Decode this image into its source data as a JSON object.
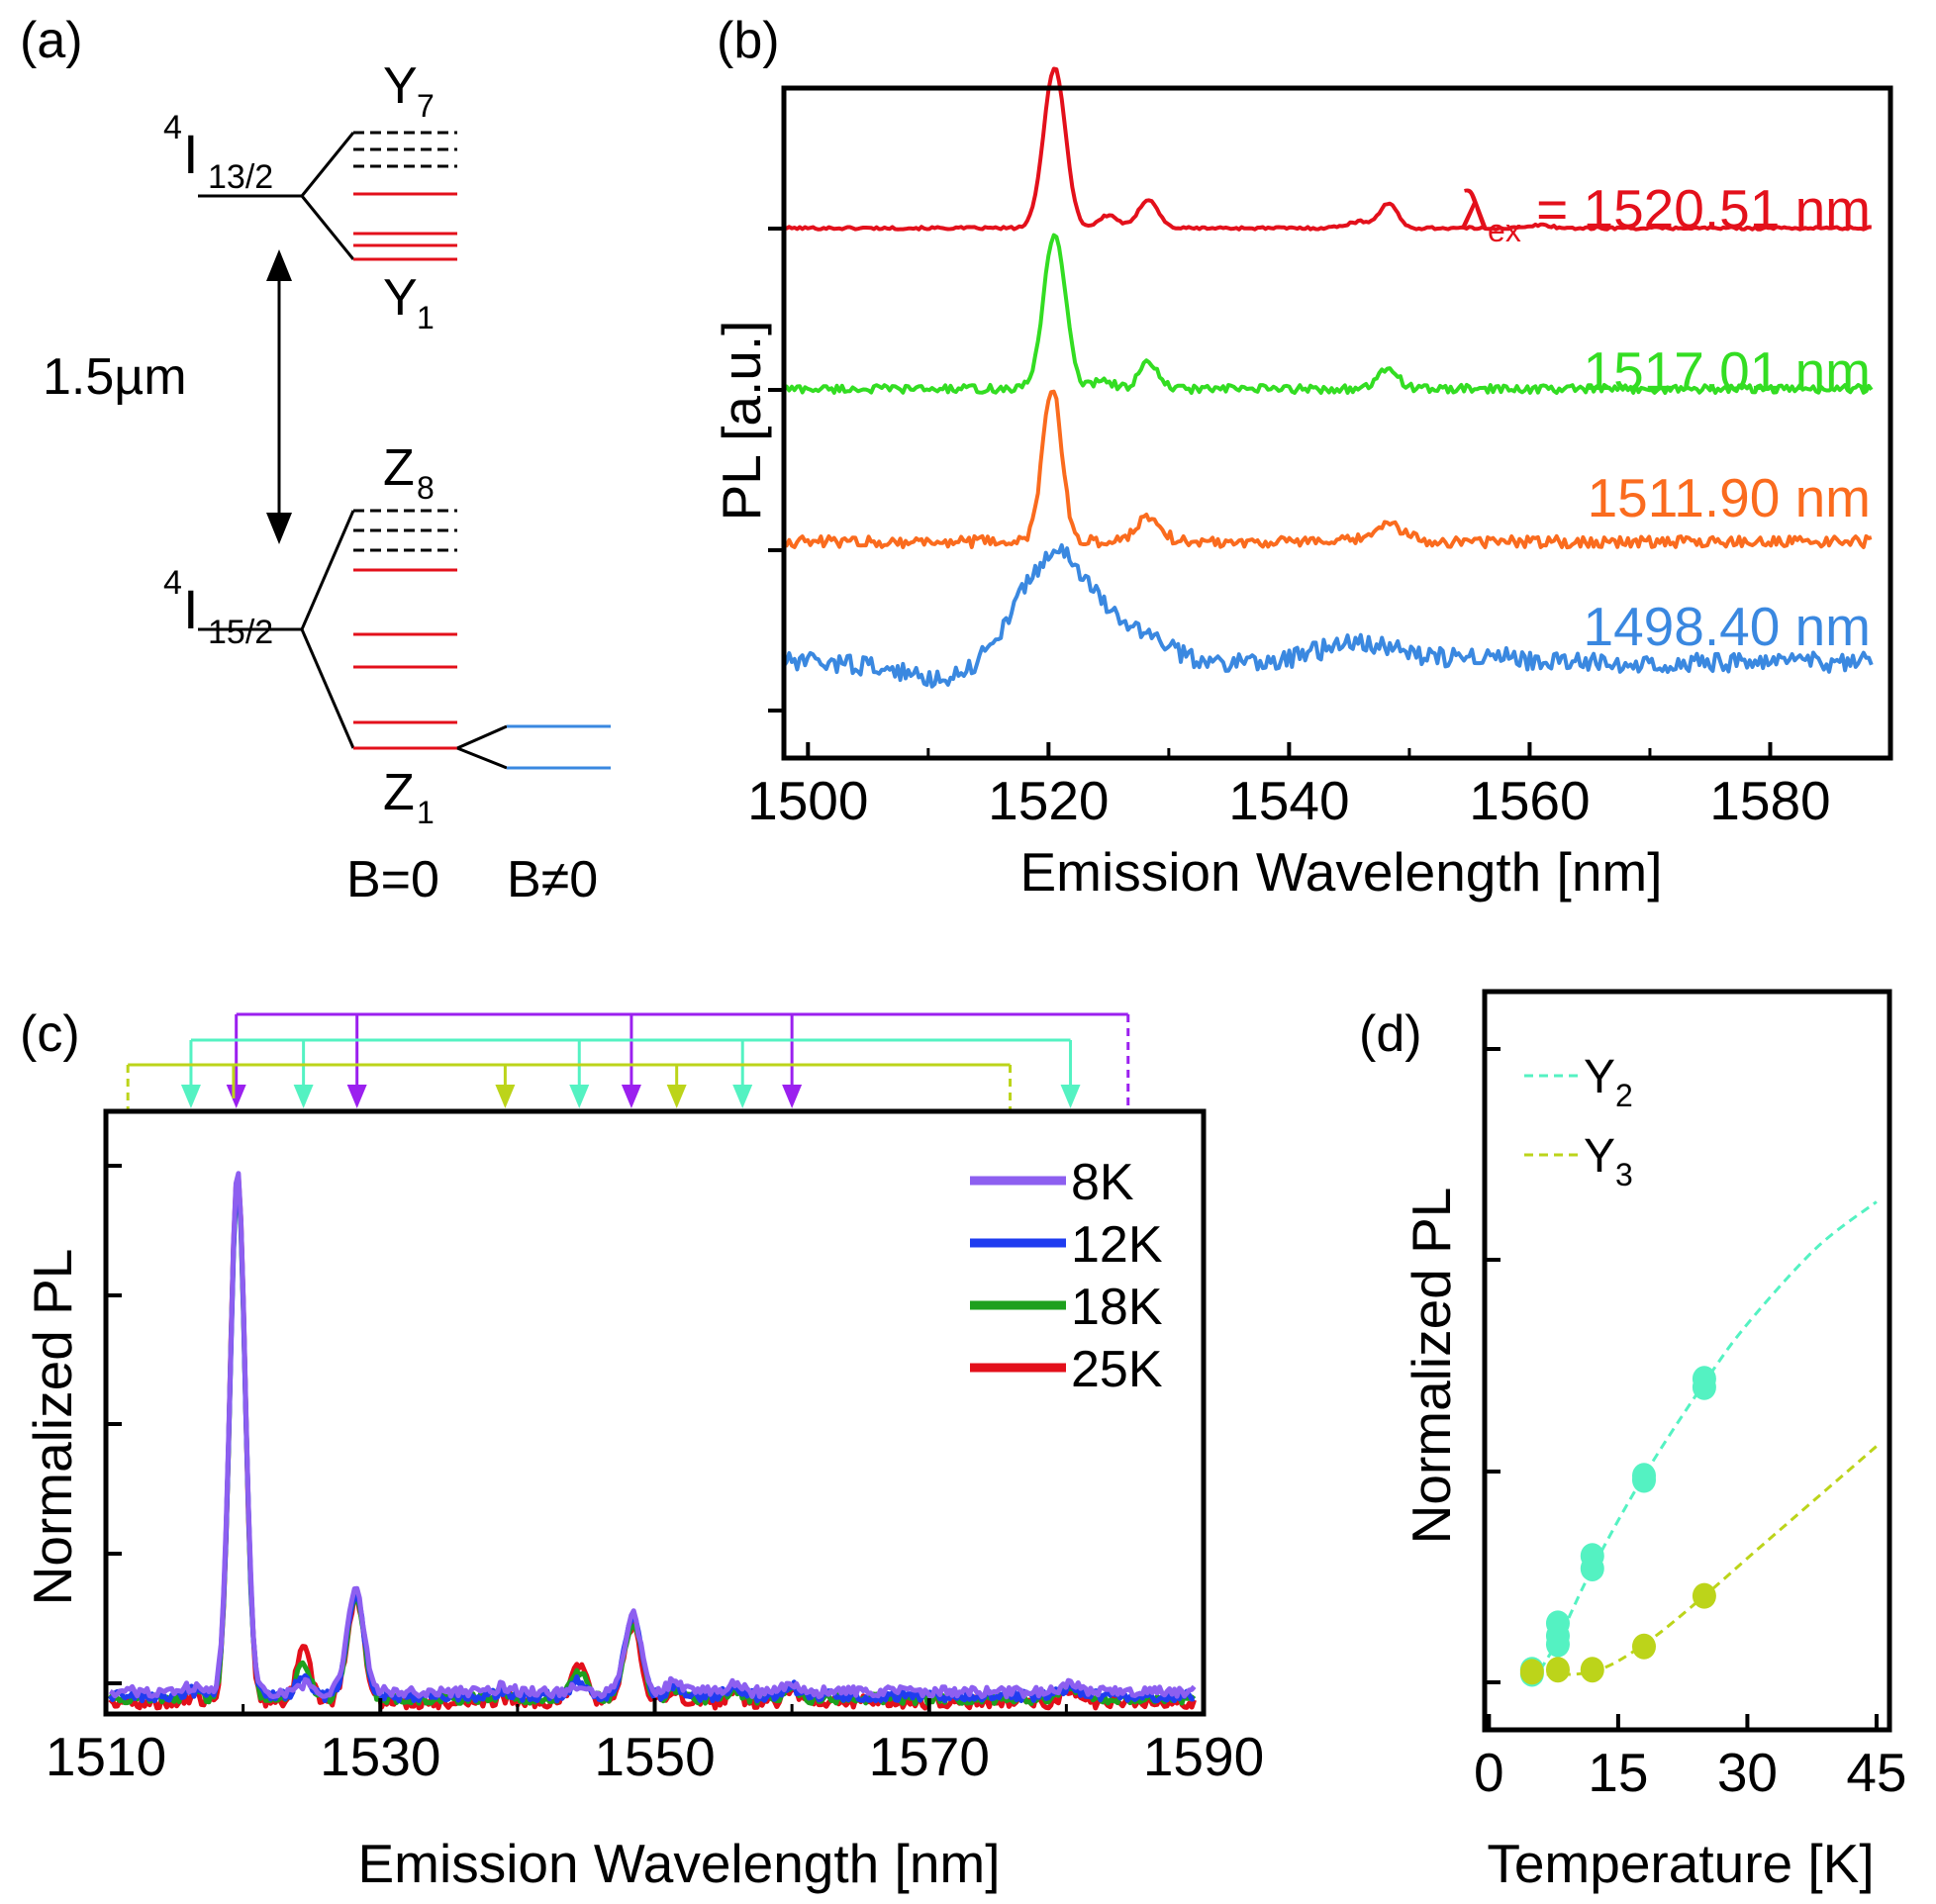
{
  "colors": {
    "black": "#000000",
    "red": "#e3101b",
    "green": "#33dd22",
    "orange": "#fa6b1e",
    "lightblue": "#3a88e0",
    "purple": "#9b20ef",
    "cyan": "#54f2c2",
    "lime": "#bcd41a",
    "violet": "#8d5ff0",
    "blue": "#1f3cf0",
    "dkgreen": "#1ea01e"
  },
  "panel_a": {
    "label": "(a)",
    "upper_level": "4I13/2",
    "lower_level": "4I15/2",
    "upper_level_sup": "4",
    "upper_level_main": "I",
    "upper_level_sub": "13/2",
    "lower_level_sup": "4",
    "lower_level_main": "I",
    "lower_level_sub": "15/2",
    "y7_main": "Y",
    "y7_sub": "7",
    "y1_main": "Y",
    "y1_sub": "1",
    "z8_main": "Z",
    "z8_sub": "8",
    "z1_main": "Z",
    "z1_sub": "1",
    "transition": "1.5µm",
    "b_zero": "B=0",
    "b_nonzero": "B≠0"
  },
  "chart_data": [
    {
      "id": "b",
      "label": "(b)",
      "type": "line",
      "xlabel": "Emission Wavelength [nm]",
      "ylabel": "PL [a.u.]",
      "xlim": [
        1498,
        1590
      ],
      "x_ticks": [
        1500,
        1520,
        1540,
        1560,
        1580
      ],
      "series": [
        {
          "name": "λex = 1520.51 nm",
          "annotation_prefix": "λ",
          "annotation_sub": "ex",
          "annotation_rest": " = 1520.51 nm",
          "color": "red",
          "baseline": 3.0,
          "noise": 0.008,
          "peaks": [
            [
              1520.5,
              1.0,
              0.9
            ],
            [
              1525,
              0.08,
              0.8
            ],
            [
              1528.3,
              0.18,
              0.8
            ],
            [
              1546,
              0.04,
              1.2
            ],
            [
              1548.3,
              0.15,
              0.7
            ],
            [
              1561,
              0.02,
              0.8
            ]
          ]
        },
        {
          "name": "1517.01 nm",
          "annotation_prefix": "",
          "annotation_sub": "",
          "annotation_rest": "1517.01 nm",
          "color": "green",
          "baseline": 2.0,
          "noise": 0.025,
          "peaks": [
            [
              1520.5,
              0.97,
              0.9
            ],
            [
              1524.5,
              0.06,
              0.8
            ],
            [
              1528.3,
              0.16,
              0.8
            ],
            [
              1548.3,
              0.13,
              0.8
            ]
          ]
        },
        {
          "name": "1511.90 nm",
          "annotation_prefix": "",
          "annotation_sub": "",
          "annotation_rest": "1511.90 nm",
          "color": "orange",
          "baseline": 1.05,
          "noise": 0.035,
          "peaks": [
            [
              1520.3,
              0.95,
              0.8
            ],
            [
              1528.3,
              0.16,
              1.0
            ],
            [
              1548.3,
              0.1,
              1.3
            ]
          ]
        },
        {
          "name": "1498.40 nm",
          "annotation_prefix": "",
          "annotation_sub": "",
          "annotation_rest": "1498.40 nm",
          "color": "lightblue",
          "baseline": 0.3,
          "noise": 0.06,
          "peaks": [
            [
              1520.7,
              0.68,
              3.2
            ],
            [
              1528,
              0.15,
              2.0
            ],
            [
              1546,
              0.12,
              3.5
            ],
            [
              1556,
              0.05,
              2.0
            ]
          ]
        }
      ]
    },
    {
      "id": "c",
      "label": "(c)",
      "type": "line",
      "xlabel": "Emission Wavelength [nm]",
      "ylabel": "Normalized PL",
      "xlim": [
        1510,
        1590
      ],
      "ylim": [
        -0.035,
        1.13
      ],
      "x_ticks": [
        1510,
        1530,
        1550,
        1570,
        1590
      ],
      "legend": "top-right",
      "series": [
        {
          "name": "25K",
          "color": "red",
          "y2_height": 0.1,
          "noise": 0.012,
          "offset": -0.012
        },
        {
          "name": "18K",
          "color": "dkgreen",
          "y2_height": 0.068,
          "noise": 0.01,
          "offset": -0.005
        },
        {
          "name": "12K",
          "color": "blue",
          "y2_height": 0.038,
          "noise": 0.01,
          "offset": 0.0
        },
        {
          "name": "8K",
          "color": "violet",
          "y2_height": 0.015,
          "noise": 0.01,
          "offset": 0.008
        }
      ],
      "transition_markers": [
        {
          "group": "Y1 (purple)",
          "color": "purple",
          "x": [
            1519.5,
            1528.3,
            1548.3,
            1560.0
          ],
          "dashed_end": 1584.5
        },
        {
          "group": "Y2 (cyan)",
          "color": "cyan",
          "x": [
            1516.2,
            1524.4,
            1544.5,
            1556.4,
            1580.3
          ],
          "dashed_end": null
        },
        {
          "group": "Y3 (lime)",
          "color": "lime",
          "x": [
            1539.1,
            1551.6
          ],
          "dashed_end": 1575.9
        }
      ]
    },
    {
      "id": "d",
      "label": "(d)",
      "type": "scatter",
      "xlabel": "Temperature [K]",
      "ylabel": "Normalized PL",
      "xlim": [
        -0.5,
        46.5
      ],
      "x_ticks": [
        0,
        15,
        30,
        45
      ],
      "legend": "top-left",
      "series": [
        {
          "name": "Y2",
          "name_main": "Y",
          "name_sub": "2",
          "color": "cyan",
          "points": [
            [
              5,
              0.02
            ],
            [
              5,
              0.03
            ],
            [
              8,
              0.09
            ],
            [
              8,
              0.11
            ],
            [
              8,
              0.14
            ],
            [
              12,
              0.27
            ],
            [
              12,
              0.3
            ],
            [
              18,
              0.48
            ],
            [
              18,
              0.49
            ],
            [
              25,
              0.7
            ],
            [
              25,
              0.72
            ]
          ],
          "fit": [
            [
              5,
              0.0
            ],
            [
              8,
              0.1
            ],
            [
              12,
              0.27
            ],
            [
              18,
              0.49
            ],
            [
              25,
              0.71
            ],
            [
              30,
              0.85
            ],
            [
              38,
              1.03
            ],
            [
              45,
              1.14
            ]
          ]
        },
        {
          "name": "Y3",
          "name_main": "Y",
          "name_sub": "3",
          "color": "lime",
          "points": [
            [
              5,
              0.025
            ],
            [
              8,
              0.03
            ],
            [
              12,
              0.03
            ],
            [
              18,
              0.085
            ],
            [
              25,
              0.205
            ]
          ],
          "fit": [
            [
              5,
              0.02
            ],
            [
              12,
              0.025
            ],
            [
              18,
              0.09
            ],
            [
              25,
              0.205
            ],
            [
              32,
              0.33
            ],
            [
              45,
              0.56
            ]
          ]
        }
      ]
    }
  ]
}
